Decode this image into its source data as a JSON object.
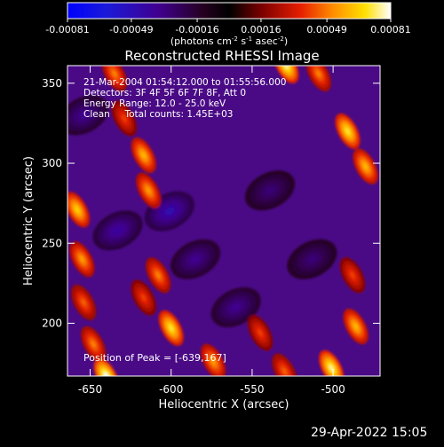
{
  "chart_data": {
    "type": "heatmap",
    "title": "Reconstructed RHESSI Image",
    "xlabel": "Heliocentric X (arcsec)",
    "ylabel": "Heliocentric Y (arcsec)",
    "xlim": [
      -664,
      -471
    ],
    "ylim": [
      167,
      361
    ],
    "x_ticks": [
      -650,
      -600,
      -550,
      -500
    ],
    "y_ticks": [
      200,
      250,
      300,
      350
    ],
    "colorbar": {
      "range": [
        -0.00081,
        0.00081
      ],
      "ticks": [
        "-0.00081",
        "-0.00049",
        "-0.00016",
        "0.00016",
        "0.00049",
        "0.00081"
      ],
      "tick_values": [
        -0.00081,
        -0.00049,
        -0.00016,
        0.00016,
        0.00049,
        0.00081
      ],
      "unit_parts": [
        "(photons cm",
        "-2",
        " s",
        "-1",
        " asec",
        "-2",
        ")"
      ]
    },
    "annotations": [
      "21-Mar-2004 01:54:12.000 to 01:55:56.000",
      "Detectors: 3F 4F 5F 6F 7F 8F, Att 0",
      "Energy Range: 12.0 - 25.0 keV",
      "Clean     Total counts: 1.45E+03"
    ],
    "peak_label": "Position of Peak = [-639,167]",
    "peak": [
      -639,
      167
    ],
    "bright_sources": [
      {
        "x": -658,
        "y": 271,
        "v": 0.00065
      },
      {
        "x": -655,
        "y": 240,
        "v": 0.00055
      },
      {
        "x": -654,
        "y": 213,
        "v": 0.00045
      },
      {
        "x": -648,
        "y": 187,
        "v": 0.0005
      },
      {
        "x": -640,
        "y": 167,
        "v": 0.00081
      },
      {
        "x": -635,
        "y": 356,
        "v": 0.0005
      },
      {
        "x": -629,
        "y": 328,
        "v": 0.0004
      },
      {
        "x": -617,
        "y": 305,
        "v": 0.0006
      },
      {
        "x": -614,
        "y": 283,
        "v": 0.00055
      },
      {
        "x": -608,
        "y": 230,
        "v": 0.0005
      },
      {
        "x": -617,
        "y": 216,
        "v": 0.0004
      },
      {
        "x": -600,
        "y": 197,
        "v": 0.0007
      },
      {
        "x": -574,
        "y": 176,
        "v": 0.00055
      },
      {
        "x": -529,
        "y": 361,
        "v": 0.00075
      },
      {
        "x": -545,
        "y": 194,
        "v": 0.0004
      },
      {
        "x": -530,
        "y": 170,
        "v": 0.00045
      },
      {
        "x": -509,
        "y": 356,
        "v": 0.0005
      },
      {
        "x": -491,
        "y": 320,
        "v": 0.0007
      },
      {
        "x": -480,
        "y": 298,
        "v": 0.0006
      },
      {
        "x": -488,
        "y": 230,
        "v": 0.0004
      },
      {
        "x": -486,
        "y": 198,
        "v": 0.0006
      },
      {
        "x": -501,
        "y": 172,
        "v": 0.00075
      }
    ],
    "dark_regions": [
      {
        "x": -601,
        "y": 270,
        "v": -0.00045
      },
      {
        "x": -633,
        "y": 258,
        "v": -0.0004
      },
      {
        "x": -585,
        "y": 240,
        "v": -0.00035
      },
      {
        "x": -560,
        "y": 210,
        "v": -0.00035
      },
      {
        "x": -539,
        "y": 283,
        "v": -0.0003
      },
      {
        "x": -513,
        "y": 240,
        "v": -0.0003
      },
      {
        "x": -654,
        "y": 330,
        "v": -0.00035
      }
    ],
    "grid": false
  },
  "footer": {
    "timestamp": "29-Apr-2022 15:05"
  }
}
